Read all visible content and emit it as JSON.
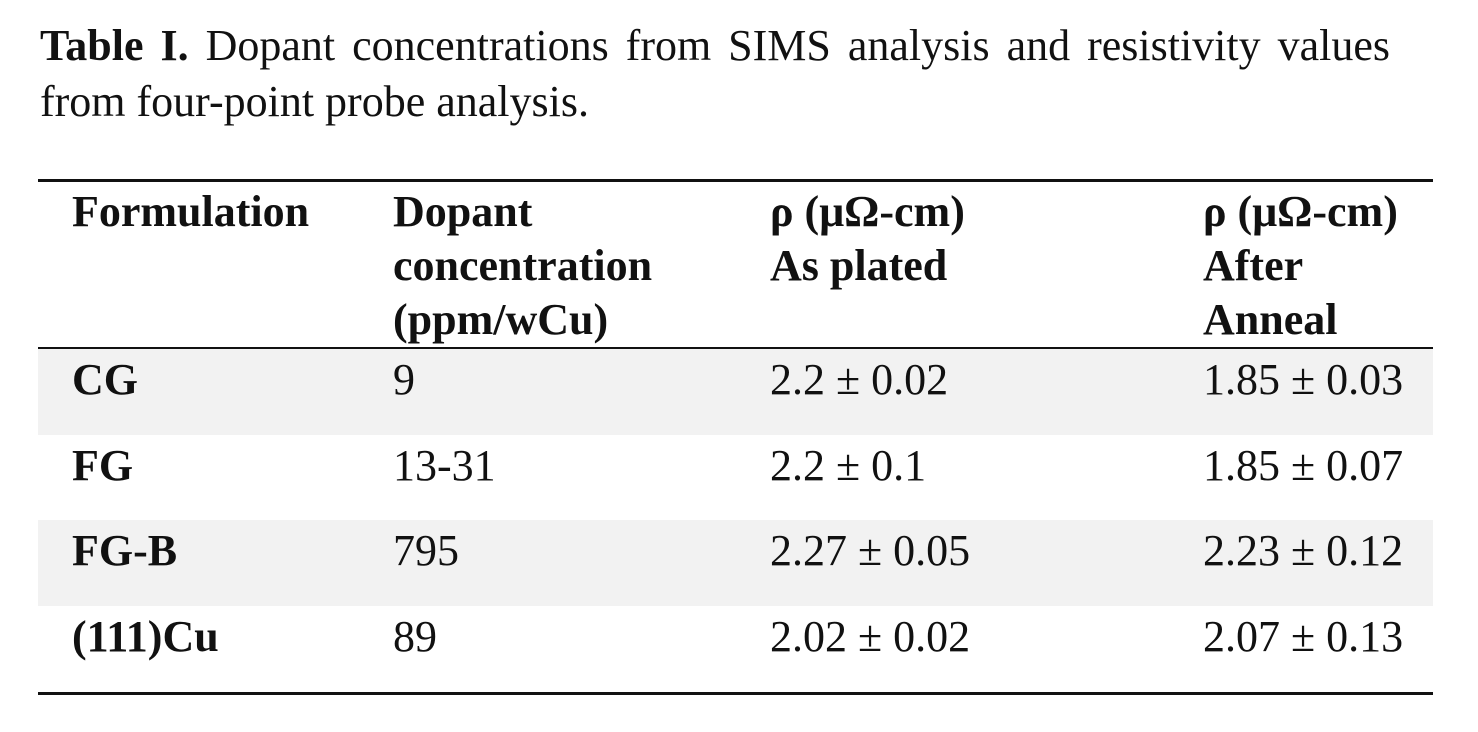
{
  "caption": {
    "label": "Table I.",
    "text": "Dopant concentrations from SIMS analysis and resistivity values from four-point probe analysis."
  },
  "table": {
    "header": [
      [
        "Formulation"
      ],
      [
        "Dopant",
        "concentration",
        "(ppm/wCu)"
      ],
      [
        "ρ (μΩ-cm)",
        "As plated"
      ],
      [
        "ρ (μΩ-cm)",
        "After",
        "Anneal"
      ]
    ],
    "rows": [
      [
        "CG",
        "9",
        "2.2 ± 0.02",
        "1.85 ± 0.03"
      ],
      [
        "FG",
        "13-31",
        "2.2 ± 0.1",
        "1.85 ± 0.07"
      ],
      [
        "FG-B",
        "795",
        "2.27 ± 0.05",
        "2.23 ± 0.12"
      ],
      [
        "(111)Cu",
        "89",
        "2.02 ± 0.02",
        "2.07 ± 0.13"
      ]
    ]
  }
}
